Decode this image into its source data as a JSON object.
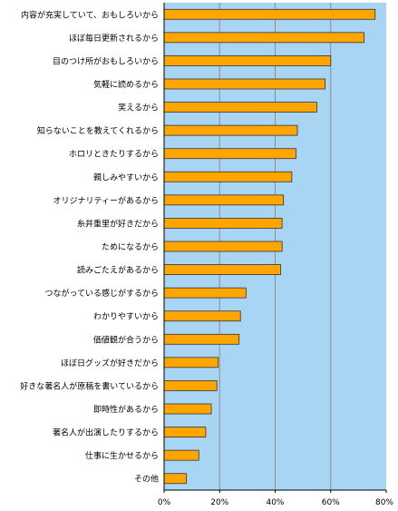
{
  "chart_data": {
    "type": "bar",
    "orientation": "horizontal",
    "categories": [
      "内容が充実していて、おもしろいから",
      "ほぼ毎日更新されるから",
      "目のつけ所がおもしろいから",
      "気軽に読めるから",
      "笑えるから",
      "知らないことを教えてくれるから",
      "ホロリときたりするから",
      "親しみやすいから",
      "オリジナリティーがあるから",
      "糸井重里が好きだから",
      "ためになるから",
      "読みごたえがあるから",
      "つながっている感じがするから",
      "わかりやすいから",
      "価値観が合うから",
      "ほぼ日グッズが好きだから",
      "好きな著名人が原稿を書いているから",
      "即時性があるから",
      "著名人が出演したりするから",
      "仕事に生かせるから",
      "その他"
    ],
    "values": [
      76,
      72,
      60,
      58,
      55,
      48,
      47.5,
      46,
      43,
      42.5,
      42.5,
      42,
      29.5,
      27.5,
      27,
      19.5,
      19,
      17,
      15,
      12.5,
      8
    ],
    "xlim": [
      0,
      80
    ],
    "xticks": [
      "0%",
      "20%",
      "40%",
      "60%",
      "80%"
    ],
    "grid": true,
    "colors": {
      "bar": "#ffa500",
      "bar_stroke": "#333333",
      "plot_bg": "#a9d5f5",
      "grid": "#8c8c8c",
      "axis": "#000000"
    }
  }
}
